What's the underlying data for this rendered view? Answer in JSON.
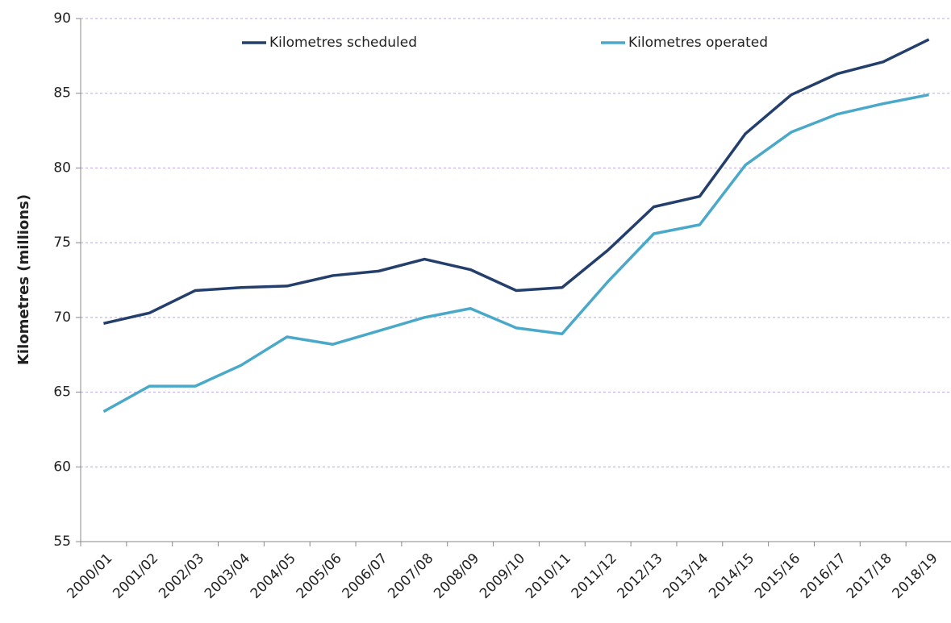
{
  "chart_data": {
    "type": "line",
    "y_label": "Kilometres (millions)",
    "categories": [
      "2000/01",
      "2001/02",
      "2002/03",
      "2003/04",
      "2004/05",
      "2005/06",
      "2006/07",
      "2007/08",
      "2008/09",
      "2009/10",
      "2010/11",
      "2011/12",
      "2012/13",
      "2013/14",
      "2014/15",
      "2015/16",
      "2016/17",
      "2017/18",
      "2018/19"
    ],
    "series": [
      {
        "name": "Kilometres scheduled",
        "color": "#243f6b",
        "values": [
          69.6,
          70.3,
          71.8,
          72.0,
          72.1,
          72.8,
          73.1,
          73.9,
          73.2,
          71.8,
          72.0,
          74.5,
          77.4,
          78.1,
          82.3,
          84.9,
          86.3,
          87.1,
          88.6
        ]
      },
      {
        "name": "Kilometres operated",
        "color": "#4aa9c9",
        "values": [
          63.7,
          65.4,
          65.4,
          66.8,
          68.7,
          68.2,
          69.1,
          70.0,
          70.6,
          69.3,
          68.9,
          72.4,
          75.6,
          76.2,
          80.2,
          82.4,
          83.6,
          84.3,
          84.9
        ]
      }
    ],
    "ylim": [
      55,
      90
    ],
    "yticks": [
      55,
      60,
      65,
      70,
      75,
      80,
      85,
      90
    ],
    "grid": true,
    "legend": "top"
  }
}
